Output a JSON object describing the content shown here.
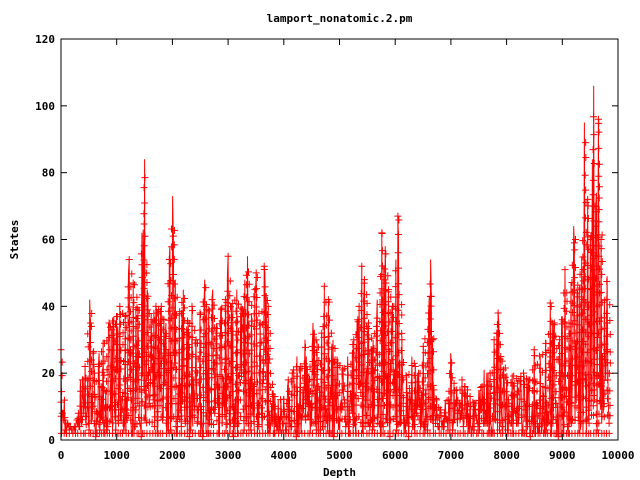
{
  "chart_data": {
    "type": "line",
    "title": "lamport_nonatomic.2.pm",
    "xlabel": "Depth",
    "ylabel": "States",
    "xlim": [
      0,
      10000
    ],
    "ylim": [
      0,
      120
    ],
    "xticks": [
      0,
      1000,
      2000,
      3000,
      4000,
      5000,
      6000,
      7000,
      8000,
      9000,
      10000
    ],
    "yticks": [
      0,
      20,
      40,
      60,
      80,
      100,
      120
    ],
    "grid": false,
    "legend": "none",
    "marker": "plus",
    "series_color": "#ff0000",
    "envelope": [
      {
        "x": 0,
        "y": 27
      },
      {
        "x": 60,
        "y": 12
      },
      {
        "x": 120,
        "y": 5
      },
      {
        "x": 200,
        "y": 3
      },
      {
        "x": 280,
        "y": 6
      },
      {
        "x": 350,
        "y": 18
      },
      {
        "x": 430,
        "y": 22
      },
      {
        "x": 520,
        "y": 42
      },
      {
        "x": 600,
        "y": 20
      },
      {
        "x": 680,
        "y": 26
      },
      {
        "x": 760,
        "y": 30
      },
      {
        "x": 850,
        "y": 35
      },
      {
        "x": 950,
        "y": 37
      },
      {
        "x": 1050,
        "y": 40
      },
      {
        "x": 1150,
        "y": 37
      },
      {
        "x": 1220,
        "y": 54
      },
      {
        "x": 1300,
        "y": 47
      },
      {
        "x": 1380,
        "y": 40
      },
      {
        "x": 1450,
        "y": 62
      },
      {
        "x": 1500,
        "y": 84
      },
      {
        "x": 1550,
        "y": 45
      },
      {
        "x": 1620,
        "y": 38
      },
      {
        "x": 1700,
        "y": 40
      },
      {
        "x": 1800,
        "y": 40
      },
      {
        "x": 1880,
        "y": 35
      },
      {
        "x": 1950,
        "y": 58
      },
      {
        "x": 2000,
        "y": 73
      },
      {
        "x": 2050,
        "y": 48
      },
      {
        "x": 2120,
        "y": 38
      },
      {
        "x": 2200,
        "y": 45
      },
      {
        "x": 2280,
        "y": 35
      },
      {
        "x": 2350,
        "y": 40
      },
      {
        "x": 2420,
        "y": 30
      },
      {
        "x": 2500,
        "y": 38
      },
      {
        "x": 2580,
        "y": 48
      },
      {
        "x": 2650,
        "y": 40
      },
      {
        "x": 2720,
        "y": 45
      },
      {
        "x": 2800,
        "y": 35
      },
      {
        "x": 2870,
        "y": 40
      },
      {
        "x": 2950,
        "y": 42
      },
      {
        "x": 3000,
        "y": 55
      },
      {
        "x": 3080,
        "y": 40
      },
      {
        "x": 3150,
        "y": 45
      },
      {
        "x": 3230,
        "y": 40
      },
      {
        "x": 3300,
        "y": 48
      },
      {
        "x": 3350,
        "y": 55
      },
      {
        "x": 3420,
        "y": 38
      },
      {
        "x": 3500,
        "y": 50
      },
      {
        "x": 3580,
        "y": 35
      },
      {
        "x": 3650,
        "y": 52
      },
      {
        "x": 3720,
        "y": 40
      },
      {
        "x": 3800,
        "y": 15
      },
      {
        "x": 3900,
        "y": 12
      },
      {
        "x": 4000,
        "y": 13
      },
      {
        "x": 4080,
        "y": 18
      },
      {
        "x": 4150,
        "y": 20
      },
      {
        "x": 4230,
        "y": 25
      },
      {
        "x": 4300,
        "y": 22
      },
      {
        "x": 4380,
        "y": 30
      },
      {
        "x": 4450,
        "y": 20
      },
      {
        "x": 4520,
        "y": 35
      },
      {
        "x": 4600,
        "y": 30
      },
      {
        "x": 4680,
        "y": 32
      },
      {
        "x": 4730,
        "y": 46
      },
      {
        "x": 4800,
        "y": 42
      },
      {
        "x": 4880,
        "y": 30
      },
      {
        "x": 4950,
        "y": 25
      },
      {
        "x": 5050,
        "y": 22
      },
      {
        "x": 5150,
        "y": 25
      },
      {
        "x": 5250,
        "y": 30
      },
      {
        "x": 5350,
        "y": 40
      },
      {
        "x": 5400,
        "y": 52
      },
      {
        "x": 5450,
        "y": 48
      },
      {
        "x": 5520,
        "y": 35
      },
      {
        "x": 5600,
        "y": 30
      },
      {
        "x": 5680,
        "y": 42
      },
      {
        "x": 5760,
        "y": 62
      },
      {
        "x": 5820,
        "y": 58
      },
      {
        "x": 5880,
        "y": 45
      },
      {
        "x": 5950,
        "y": 40
      },
      {
        "x": 6050,
        "y": 67
      },
      {
        "x": 6120,
        "y": 30
      },
      {
        "x": 6200,
        "y": 20
      },
      {
        "x": 6300,
        "y": 25
      },
      {
        "x": 6400,
        "y": 20
      },
      {
        "x": 6500,
        "y": 28
      },
      {
        "x": 6600,
        "y": 38
      },
      {
        "x": 6640,
        "y": 54
      },
      {
        "x": 6700,
        "y": 15
      },
      {
        "x": 6800,
        "y": 10
      },
      {
        "x": 6900,
        "y": 12
      },
      {
        "x": 7000,
        "y": 26
      },
      {
        "x": 7100,
        "y": 15
      },
      {
        "x": 7200,
        "y": 18
      },
      {
        "x": 7300,
        "y": 15
      },
      {
        "x": 7400,
        "y": 12
      },
      {
        "x": 7500,
        "y": 15
      },
      {
        "x": 7600,
        "y": 21
      },
      {
        "x": 7700,
        "y": 20
      },
      {
        "x": 7780,
        "y": 30
      },
      {
        "x": 7850,
        "y": 38
      },
      {
        "x": 7900,
        "y": 25
      },
      {
        "x": 8000,
        "y": 20
      },
      {
        "x": 8100,
        "y": 20
      },
      {
        "x": 8200,
        "y": 18
      },
      {
        "x": 8300,
        "y": 20
      },
      {
        "x": 8400,
        "y": 18
      },
      {
        "x": 8500,
        "y": 27
      },
      {
        "x": 8600,
        "y": 25
      },
      {
        "x": 8700,
        "y": 30
      },
      {
        "x": 8780,
        "y": 41
      },
      {
        "x": 8850,
        "y": 35
      },
      {
        "x": 8950,
        "y": 30
      },
      {
        "x": 9050,
        "y": 51
      },
      {
        "x": 9120,
        "y": 35
      },
      {
        "x": 9200,
        "y": 64
      },
      {
        "x": 9280,
        "y": 45
      },
      {
        "x": 9350,
        "y": 55
      },
      {
        "x": 9400,
        "y": 95
      },
      {
        "x": 9450,
        "y": 72
      },
      {
        "x": 9500,
        "y": 60
      },
      {
        "x": 9560,
        "y": 106
      },
      {
        "x": 9600,
        "y": 70
      },
      {
        "x": 9650,
        "y": 96
      },
      {
        "x": 9700,
        "y": 60
      },
      {
        "x": 9750,
        "y": 42
      },
      {
        "x": 9800,
        "y": 49
      },
      {
        "x": 9850,
        "y": 44
      }
    ]
  }
}
